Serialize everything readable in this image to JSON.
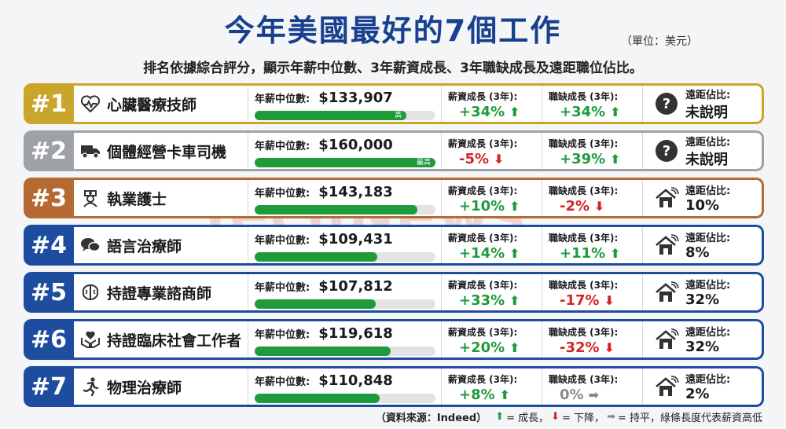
{
  "title": "今年美國最好的7個工作",
  "unit": "（單位：美元）",
  "subtitle": "排名依據綜合評分，顯示年薪中位數、3年薪資成長、3年職缺成長及遠距職位佔比。",
  "labels": {
    "salary": "年薪中位數:",
    "pay_growth": "薪資成長 (3年):",
    "job_growth": "職缺成長 (3年):",
    "remote": "遠距佔比:"
  },
  "colors": {
    "gold": "#caa52b",
    "silver": "#9ea1a6",
    "bronze": "#b56a32",
    "blue": "#1e4da0",
    "green": "#1f9b3c",
    "red": "#d42424"
  },
  "rows": [
    {
      "rank": "#1",
      "color": "#caa52b",
      "icon": "heartbeat-icon",
      "job": "心臟醫療技師",
      "salary": "$133,907",
      "bar_fraction": 0.84,
      "bar_tag": "高",
      "pay_growth": "+34%",
      "pay_dir": "up",
      "job_growth": "+34%",
      "job_dir": "up",
      "remote_icon": "question-icon",
      "remote": "未說明"
    },
    {
      "rank": "#2",
      "color": "#9ea1a6",
      "icon": "truck-icon",
      "job": "個體經營卡車司機",
      "salary": "$160,000",
      "bar_fraction": 1.0,
      "bar_tag": "最高",
      "pay_growth": "-5%",
      "pay_dir": "down",
      "job_growth": "+39%",
      "job_dir": "up",
      "remote_icon": "question-icon",
      "remote": "未說明"
    },
    {
      "rank": "#3",
      "color": "#b56a32",
      "icon": "nurse-icon",
      "job": "執業護士",
      "salary": "$143,183",
      "bar_fraction": 0.9,
      "bar_tag": "",
      "pay_growth": "+10%",
      "pay_dir": "up",
      "job_growth": "-2%",
      "job_dir": "down",
      "remote_icon": "home-wifi-icon",
      "remote": "10%"
    },
    {
      "rank": "#4",
      "color": "#1e4da0",
      "icon": "speech-icon",
      "job": "語言治療師",
      "salary": "$109,431",
      "bar_fraction": 0.68,
      "bar_tag": "",
      "pay_growth": "+14%",
      "pay_dir": "up",
      "job_growth": "+11%",
      "job_dir": "up",
      "remote_icon": "home-wifi-icon",
      "remote": "8%"
    },
    {
      "rank": "#5",
      "color": "#1e4da0",
      "icon": "brain-icon",
      "job": "持證專業諮商師",
      "salary": "$107,812",
      "bar_fraction": 0.67,
      "bar_tag": "",
      "pay_growth": "+33%",
      "pay_dir": "up",
      "job_growth": "-17%",
      "job_dir": "down",
      "remote_icon": "home-wifi-icon",
      "remote": "32%"
    },
    {
      "rank": "#6",
      "color": "#1e4da0",
      "icon": "care-hands-icon",
      "job": "持證臨床社會工作者",
      "salary": "$119,618",
      "bar_fraction": 0.75,
      "bar_tag": "",
      "pay_growth": "+20%",
      "pay_dir": "up",
      "job_growth": "-32%",
      "job_dir": "down",
      "remote_icon": "home-wifi-icon",
      "remote": "32%"
    },
    {
      "rank": "#7",
      "color": "#1e4da0",
      "icon": "runner-icon",
      "job": "物理治療師",
      "salary": "$110,848",
      "bar_fraction": 0.69,
      "bar_tag": "",
      "pay_growth": "+8%",
      "pay_dir": "up",
      "job_growth": "0%",
      "job_dir": "flat",
      "remote_icon": "home-wifi-icon",
      "remote": "2%"
    }
  ],
  "footer": {
    "source": "（資料來源：Indeed）",
    "up_text": "= 成長，",
    "down_text": "= 下降，",
    "flat_text": "= 持平，綠條長度代表薪資高低"
  }
}
